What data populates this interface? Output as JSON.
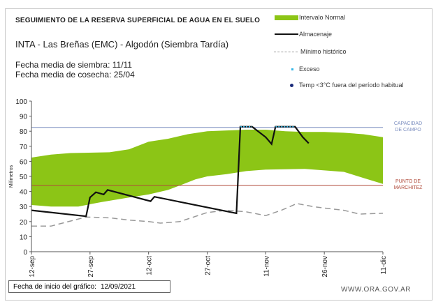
{
  "header": {
    "title": "SEGUIMIENTO DE LA RESERVA SUPERFICIAL DE AGUA EN EL SUELO",
    "subtitle": "INTA - Las Breñas (EMC) - Algodón (Siembra Tardía)",
    "sowing": "Fecha media de siembra: 11/11",
    "harvest": "Fecha media de cosecha: 25/04"
  },
  "footer": {
    "start_label": "Fecha de inicio del gráfico:",
    "start_date": "12/09/2021",
    "url": "WWW.ORA.GOV.AR"
  },
  "chart_data": {
    "type": "area",
    "title": "SEGUIMIENTO DE LA RESERVA SUPERFICIAL DE AGUA EN EL SUELO",
    "xlabel": "",
    "ylabel": "Milímetros",
    "ylim": [
      0,
      100
    ],
    "xlim_days": [
      0,
      90
    ],
    "yticks": [
      0,
      10,
      20,
      30,
      40,
      50,
      60,
      70,
      80,
      90,
      100
    ],
    "xticks": [
      {
        "day": 0,
        "label": "12-sep"
      },
      {
        "day": 15,
        "label": "27-sep"
      },
      {
        "day": 30,
        "label": "12-oct"
      },
      {
        "day": 45,
        "label": "27-oct"
      },
      {
        "day": 60,
        "label": "11-nov"
      },
      {
        "day": 75,
        "label": "26-nov"
      },
      {
        "day": 90,
        "label": "11-dic"
      }
    ],
    "legend": {
      "placement": "top-right",
      "entries": [
        "Intervalo Normal",
        "Almacenaje",
        "Mínimo histórico",
        "Exceso",
        "Temp <3°C fuera del período habitual"
      ]
    },
    "colors": {
      "band": "#8cc516",
      "storage": "#111111",
      "min": "#999999",
      "excess": "#33b7e8",
      "cc": "#7d8fc0",
      "pm": "#b04a3a",
      "temp": "#1a2a7a"
    },
    "reference_lines": [
      {
        "label": "CAPACIDAD DE CAMPO",
        "value": 82.5
      },
      {
        "label": "PUNTO DE MARCHITEZ",
        "value": 44
      }
    ],
    "band_upper": [
      [
        0,
        62.5
      ],
      [
        5,
        64.5
      ],
      [
        10,
        65.5
      ],
      [
        20,
        66
      ],
      [
        25,
        68
      ],
      [
        30,
        73
      ],
      [
        35,
        75
      ],
      [
        40,
        78
      ],
      [
        45,
        80
      ],
      [
        50,
        80.5
      ],
      [
        55,
        81
      ],
      [
        60,
        81
      ],
      [
        65,
        80
      ],
      [
        70,
        79.5
      ],
      [
        75,
        79.5
      ],
      [
        80,
        79
      ],
      [
        85,
        78
      ],
      [
        90,
        76
      ]
    ],
    "band_lower": [
      [
        0,
        31
      ],
      [
        5,
        30
      ],
      [
        12,
        30
      ],
      [
        18,
        33
      ],
      [
        25,
        36
      ],
      [
        30,
        38
      ],
      [
        35,
        41
      ],
      [
        38,
        44
      ],
      [
        42,
        48
      ],
      [
        45,
        50
      ],
      [
        50,
        51.5
      ],
      [
        55,
        53.5
      ],
      [
        60,
        54.5
      ],
      [
        70,
        55
      ],
      [
        75,
        54
      ],
      [
        80,
        53
      ],
      [
        85,
        49
      ],
      [
        90,
        45
      ]
    ],
    "storage": [
      [
        0,
        27.5
      ],
      [
        14,
        23.5
      ],
      [
        15,
        36
      ],
      [
        16.5,
        39.5
      ],
      [
        18.5,
        38
      ],
      [
        19.5,
        41
      ],
      [
        30.5,
        33.5
      ],
      [
        31.5,
        36.5
      ],
      [
        52.5,
        25.5
      ],
      [
        53.5,
        83
      ],
      [
        56.5,
        83
      ],
      [
        60,
        76
      ],
      [
        61.5,
        71.5
      ],
      [
        62.5,
        83
      ],
      [
        67.5,
        83
      ],
      [
        69.5,
        76
      ],
      [
        71,
        72
      ]
    ],
    "minimum": [
      [
        0,
        17
      ],
      [
        5,
        17
      ],
      [
        14,
        23
      ],
      [
        20,
        22.5
      ],
      [
        25,
        21
      ],
      [
        30,
        20
      ],
      [
        33,
        19
      ],
      [
        38,
        20
      ],
      [
        45,
        26
      ],
      [
        50,
        27.5
      ],
      [
        55,
        26.5
      ],
      [
        60,
        24
      ],
      [
        64,
        27.5
      ],
      [
        68,
        32
      ],
      [
        72,
        30
      ],
      [
        75,
        29
      ],
      [
        80,
        27.5
      ],
      [
        84,
        25
      ],
      [
        90,
        25.5
      ]
    ],
    "excess": [
      [
        [
          53.5,
          83
        ],
        [
          56.5,
          83
        ]
      ],
      [
        [
          62.5,
          83
        ],
        [
          67.5,
          83
        ]
      ]
    ]
  }
}
